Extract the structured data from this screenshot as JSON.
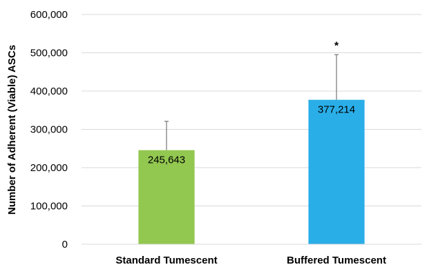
{
  "chart_data": {
    "type": "bar",
    "categories": [
      "Standard Tumescent",
      "Buffered Tumescent"
    ],
    "values": [
      245643,
      377214
    ],
    "error_upper": [
      321000,
      495000
    ],
    "data_labels": [
      "245,643",
      "377,214"
    ],
    "annotations": [
      "",
      "*"
    ],
    "colors": [
      "#92c750",
      "#2aaee8"
    ],
    "ylabel": "Number of Adherent (Viable) ASCs",
    "xlabel": "",
    "ylim": [
      0,
      600000
    ],
    "yticks": [
      0,
      100000,
      200000,
      300000,
      400000,
      500000,
      600000
    ],
    "ytick_labels": [
      "0",
      "100,000",
      "200,000",
      "300,000",
      "400,000",
      "500,000",
      "600,000"
    ],
    "grid": true,
    "legend": "none"
  }
}
